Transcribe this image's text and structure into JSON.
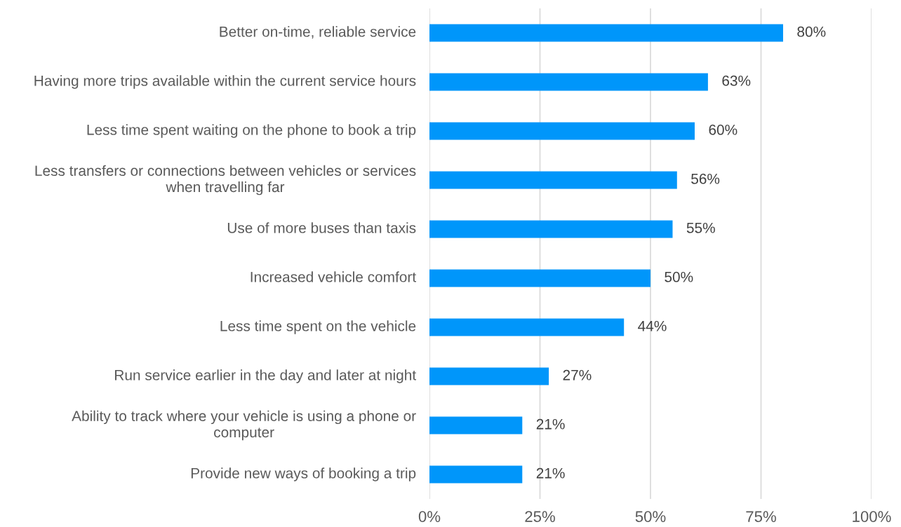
{
  "chart_data": {
    "type": "bar",
    "orientation": "horizontal",
    "categories": [
      "Better on-time, reliable service",
      "Having more trips available within the current service hours",
      "Less time spent waiting on the phone to book a trip",
      "Less transfers or connections between vehicles or services when travelling far",
      "Use of more buses than taxis",
      "Increased vehicle comfort",
      "Less time spent on the vehicle",
      "Run service earlier in the day and later at night",
      "Ability to track where your vehicle is using a phone or computer",
      "Provide new ways of booking a trip"
    ],
    "values": [
      80,
      63,
      60,
      56,
      55,
      50,
      44,
      27,
      21,
      21
    ],
    "value_labels": [
      "80%",
      "63%",
      "60%",
      "56%",
      "55%",
      "50%",
      "44%",
      "27%",
      "21%",
      "21%"
    ],
    "color": "#0096fa",
    "xlim": [
      0,
      100
    ],
    "xticks": [
      {
        "value": 0,
        "label": "0%"
      },
      {
        "value": 25,
        "label": "25%"
      },
      {
        "value": 50,
        "label": "50%"
      },
      {
        "value": 75,
        "label": "75%"
      },
      {
        "value": 100,
        "label": "100%"
      }
    ],
    "grid": "x"
  }
}
